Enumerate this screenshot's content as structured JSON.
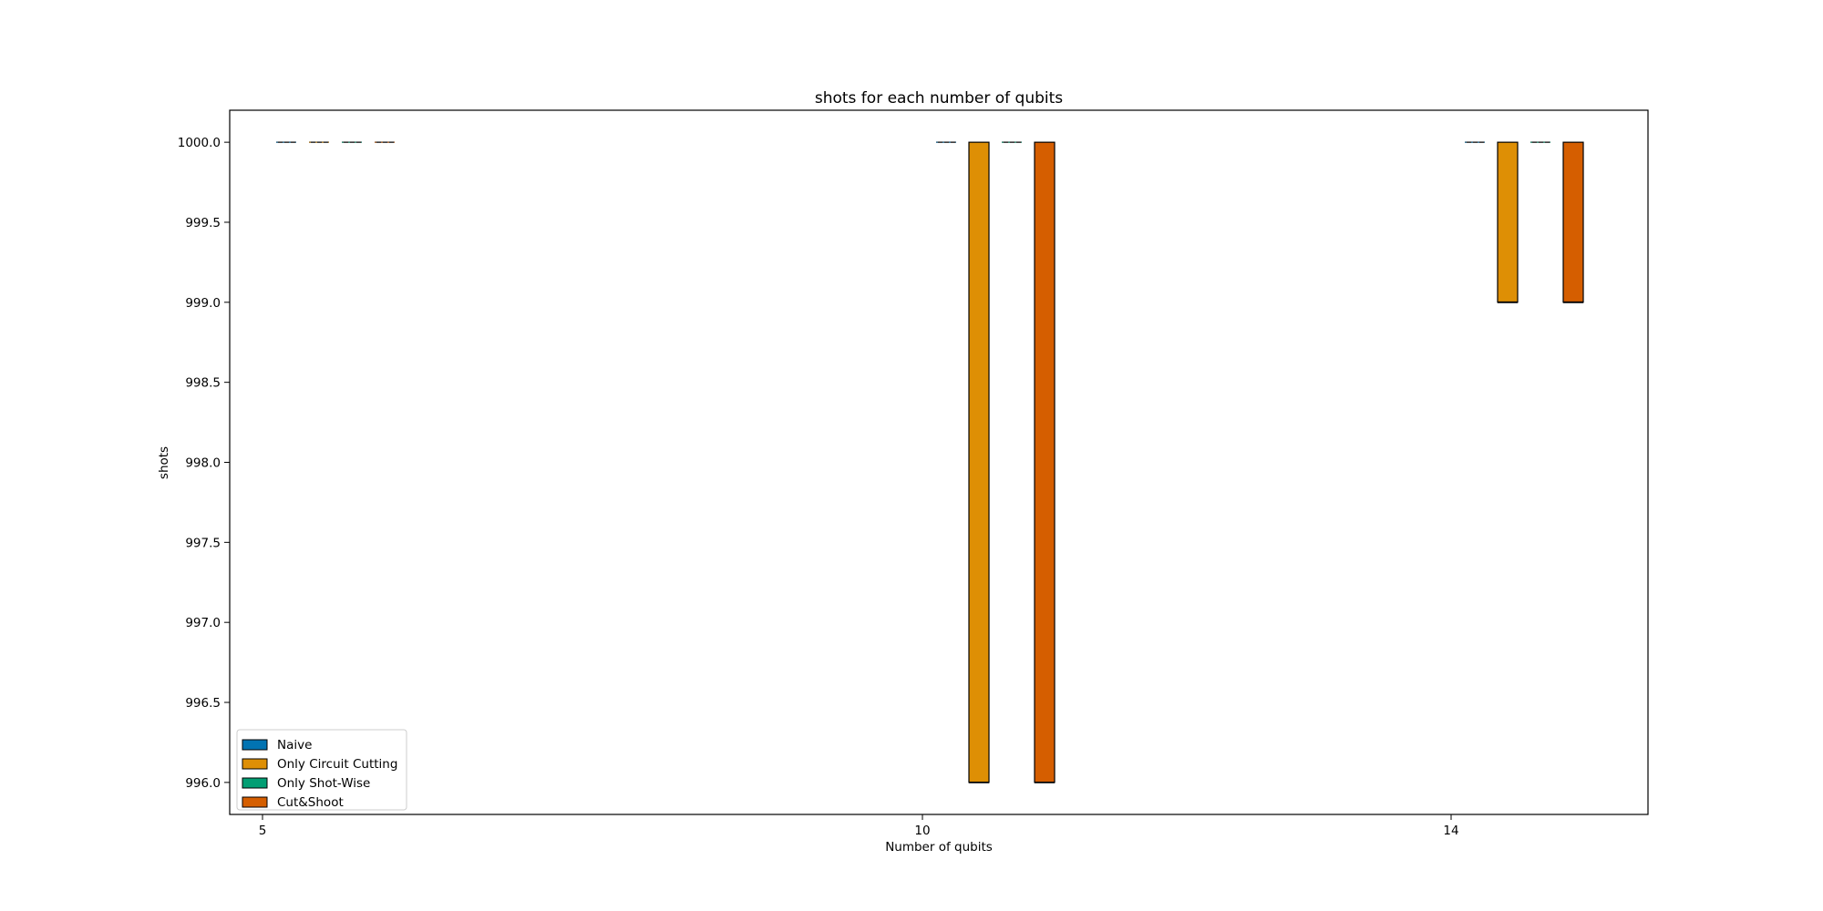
{
  "chart_data": {
    "type": "box",
    "title": "shots for each number of qubits",
    "xlabel": "Number of qubits",
    "ylabel": "shots",
    "categories": [
      "5",
      "10",
      "14"
    ],
    "x": [
      5,
      10,
      14
    ],
    "ylim": [
      995.8,
      1000.2
    ],
    "yticks": [
      996.0,
      996.5,
      997.0,
      997.5,
      998.0,
      998.5,
      999.0,
      999.5,
      1000.0
    ],
    "grid": false,
    "legend_position": "lower-left",
    "series": [
      {
        "name": "Naive",
        "color": "#0173b2",
        "boxes": [
          {
            "low": 1000,
            "high": 1000
          },
          {
            "low": 1000,
            "high": 1000
          },
          {
            "low": 1000,
            "high": 1000
          }
        ]
      },
      {
        "name": "Only Circuit Cutting",
        "color": "#de8f05",
        "boxes": [
          {
            "low": 1000,
            "high": 1000
          },
          {
            "low": 996,
            "high": 1000
          },
          {
            "low": 999,
            "high": 1000
          }
        ]
      },
      {
        "name": "Only Shot-Wise",
        "color": "#029e73",
        "boxes": [
          {
            "low": 1000,
            "high": 1000
          },
          {
            "low": 1000,
            "high": 1000
          },
          {
            "low": 1000,
            "high": 1000
          }
        ]
      },
      {
        "name": "Cut&Shoot",
        "color": "#d55e00",
        "boxes": [
          {
            "low": 1000,
            "high": 1000
          },
          {
            "low": 996,
            "high": 1000
          },
          {
            "low": 999,
            "high": 1000
          }
        ]
      }
    ]
  }
}
